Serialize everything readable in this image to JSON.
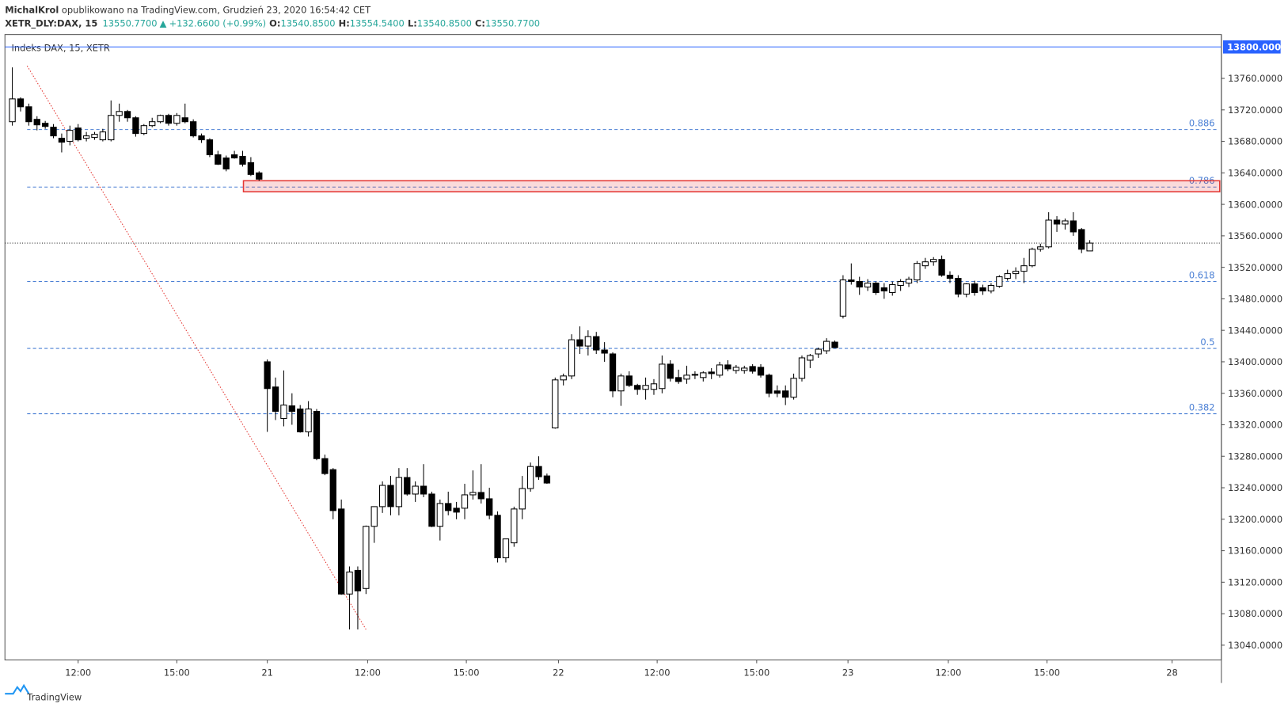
{
  "header": {
    "author": "MichalKrol",
    "published": " opublikowano na TradingView.com, Grudzień 23, 2020 16:54:42 CET",
    "symbol": "XETR_DLY:DAX, 15",
    "last": "13550.7700",
    "arrow": "▲",
    "change": "+132.6600 (+0.99%)",
    "ohlc": [
      {
        "key": "O:",
        "value": "13540.8500"
      },
      {
        "key": "H:",
        "value": "13554.5400"
      },
      {
        "key": "L:",
        "value": "13540.8500"
      },
      {
        "key": "C:",
        "value": "13550.7700"
      }
    ]
  },
  "footer": {
    "brand": "TradingView"
  },
  "chart_data": {
    "type": "candlestick",
    "title": "Indeks DAX, 15, XETR",
    "xlim": [
      -0.9,
      147
    ],
    "ylim": [
      13021.2,
      13815.7
    ],
    "yticks": [
      {
        "value": 13040,
        "label": "13040.0000"
      },
      {
        "value": 13080,
        "label": "13080.0000"
      },
      {
        "value": 13120,
        "label": "13120.0000"
      },
      {
        "value": 13160,
        "label": "13160.0000"
      },
      {
        "value": 13200,
        "label": "13200.0000"
      },
      {
        "value": 13240,
        "label": "13240.0000"
      },
      {
        "value": 13280,
        "label": "13280.0000"
      },
      {
        "value": 13320,
        "label": "13320.0000"
      },
      {
        "value": 13360,
        "label": "13360.0000"
      },
      {
        "value": 13400,
        "label": "13400.0000"
      },
      {
        "value": 13440,
        "label": "13440.0000"
      },
      {
        "value": 13480,
        "label": "13480.0000"
      },
      {
        "value": 13520,
        "label": "13520.0000"
      },
      {
        "value": 13560,
        "label": "13560.0000"
      },
      {
        "value": 13600,
        "label": "13600.0000"
      },
      {
        "value": 13640,
        "label": "13640.0000"
      },
      {
        "value": 13680,
        "label": "13680.0000"
      },
      {
        "value": 13720,
        "label": "13720.0000"
      },
      {
        "value": 13760,
        "label": "13760.0000"
      }
    ],
    "xticks": [
      {
        "value": 8,
        "label": "12:00"
      },
      {
        "value": 20,
        "label": "15:00"
      },
      {
        "value": 31,
        "label": "21"
      },
      {
        "value": 43.2,
        "label": "12:00"
      },
      {
        "value": 55.2,
        "label": "15:00"
      },
      {
        "value": 66.4,
        "label": "22"
      },
      {
        "value": 78.4,
        "label": "12:00"
      },
      {
        "value": 90.5,
        "label": "15:00"
      },
      {
        "value": 101.6,
        "label": "23"
      },
      {
        "value": 113.8,
        "label": "12:00"
      },
      {
        "value": 125.8,
        "label": "15:00"
      },
      {
        "value": 141,
        "label": "28"
      }
    ],
    "price_marker": {
      "value": 13800,
      "label": "13800.0000",
      "color": "#2962ff"
    },
    "last_price": 13550.77,
    "fib_levels": [
      {
        "label": "0.886",
        "value": 13695
      },
      {
        "label": "0.786",
        "value": 13622
      },
      {
        "label": "0.618",
        "value": 13502
      },
      {
        "label": "0.5",
        "value": 13417
      },
      {
        "label": "0.382",
        "value": 13334
      }
    ],
    "fib_start": 1.8,
    "fib_color": "#4a7fd4",
    "zone": {
      "x": 28.1,
      "top": 13630,
      "bottom": 13616,
      "color": "#e53935"
    },
    "trendline": {
      "x": [
        1.8,
        43
      ],
      "y": [
        13776,
        13060
      ],
      "color": "#e53935"
    },
    "up_color": "#ffffff",
    "down_color": "#000000",
    "x": [
      0,
      1,
      2,
      3,
      4,
      5,
      6,
      7,
      8,
      9,
      10,
      11,
      12,
      13,
      14,
      15,
      16,
      17,
      18,
      19,
      20,
      21,
      22,
      23,
      24,
      25,
      26,
      27,
      28,
      29,
      30,
      31,
      32,
      33,
      34,
      35,
      36,
      37,
      38,
      39,
      40,
      41,
      42,
      43,
      44,
      45,
      46,
      47,
      48,
      49,
      50,
      51,
      52,
      53,
      54,
      55,
      56,
      57,
      58,
      59,
      60,
      61,
      62,
      63,
      64,
      65,
      66,
      67,
      68,
      69,
      70,
      71,
      72,
      73,
      74,
      75,
      76,
      77,
      78,
      79,
      80,
      81,
      82,
      83,
      84,
      85,
      86,
      87,
      88,
      89,
      90,
      91,
      92,
      93,
      94,
      95,
      96,
      97,
      98,
      99,
      100,
      101,
      102,
      103,
      104,
      105,
      106,
      107,
      108,
      109,
      110,
      111,
      112,
      113,
      114,
      115,
      116,
      117,
      118,
      119,
      120,
      121,
      122,
      123,
      124,
      125,
      126,
      127,
      128,
      129,
      130,
      131
    ],
    "open": [
      13705,
      13734,
      13724,
      13708,
      13703,
      13698,
      13684,
      13680,
      13697,
      13684,
      13685,
      13682,
      13682,
      13713,
      13718,
      13710,
      13690,
      13700,
      13705,
      13713,
      13703,
      13710,
      13705,
      13687,
      13682,
      13663,
      13659,
      13663,
      13661,
      13653,
      13640,
      13400,
      13368,
      13328,
      13344,
      13340,
      13311,
      13337,
      13277,
      13263,
      13213,
      13105,
      13135,
      13112,
      13191,
      13216,
      13243,
      13216,
      13253,
      13232,
      13242,
      13232,
      13191,
      13220,
      13214,
      13214,
      13231,
      13234,
      13226,
      13205,
      13151,
      13170,
      13213,
      13239,
      13267,
      13255,
      13316,
      13377,
      13382,
      13428,
      13420,
      13432,
      13415,
      13410,
      13363,
      13382,
      13370,
      13365,
      13365,
      13366,
      13397,
      13380,
      13378,
      13383,
      13380,
      13387,
      13383,
      13396,
      13389,
      13389,
      13394,
      13393,
      13383,
      13363,
      13363,
      13355,
      13379,
      13402,
      13410,
      13414,
      13425,
      13458,
      13504,
      13502,
      13495,
      13500,
      13494,
      13488,
      13497,
      13500,
      13504,
      13522,
      13527,
      13530,
      13510,
      13506,
      13486,
      13499,
      13494,
      13490,
      13496,
      13506,
      13512,
      13515,
      13522,
      13543,
      13546,
      13580,
      13575,
      13579,
      13568,
      13540.85
    ],
    "high": [
      13774,
      13736,
      13728,
      13712,
      13706,
      13702,
      13690,
      13700,
      13702,
      13692,
      13692,
      13696,
      13732,
      13728,
      13720,
      13712,
      13702,
      13710,
      13714,
      13715,
      13716,
      13728,
      13708,
      13690,
      13684,
      13668,
      13662,
      13668,
      13668,
      13660,
      13642,
      13403,
      13380,
      13389,
      13360,
      13345,
      13350,
      13340,
      13282,
      13265,
      13225,
      13140,
      13140,
      13192,
      13215,
      13248,
      13255,
      13265,
      13265,
      13248,
      13270,
      13235,
      13225,
      13235,
      13222,
      13245,
      13262,
      13270,
      13240,
      13210,
      13175,
      13216,
      13255,
      13272,
      13280,
      13258,
      13380,
      13385,
      13435,
      13445,
      13440,
      13438,
      13425,
      13412,
      13385,
      13388,
      13372,
      13380,
      13378,
      13408,
      13402,
      13390,
      13395,
      13388,
      13388,
      13392,
      13400,
      13402,
      13396,
      13395,
      13397,
      13397,
      13385,
      13370,
      13370,
      13385,
      13408,
      13410,
      13418,
      13430,
      13427,
      13510,
      13525,
      13508,
      13505,
      13502,
      13500,
      13502,
      13505,
      13508,
      13528,
      13532,
      13533,
      13535,
      13515,
      13510,
      13500,
      13503,
      13498,
      13500,
      13510,
      13517,
      13520,
      13532,
      13545,
      13550,
      13590,
      13585,
      13582,
      13590,
      13570,
      13554.54
    ],
    "low": [
      13700,
      13718,
      13700,
      13694,
      13696,
      13684,
      13666,
      13675,
      13680,
      13680,
      13682,
      13680,
      13680,
      13705,
      13705,
      13686,
      13688,
      13698,
      13703,
      13700,
      13700,
      13703,
      13685,
      13678,
      13660,
      13650,
      13642,
      13658,
      13648,
      13636,
      13630,
      13311,
      13326,
      13318,
      13320,
      13310,
      13305,
      13275,
      13256,
      13200,
      13104,
      13060,
      13060,
      13105,
      13170,
      13208,
      13205,
      13205,
      13230,
      13222,
      13228,
      13190,
      13173,
      13205,
      13200,
      13200,
      13225,
      13220,
      13200,
      13145,
      13145,
      13165,
      13200,
      13235,
      13250,
      13245,
      13315,
      13370,
      13378,
      13410,
      13408,
      13410,
      13400,
      13355,
      13344,
      13368,
      13358,
      13352,
      13358,
      13360,
      13375,
      13372,
      13372,
      13378,
      13375,
      13378,
      13380,
      13388,
      13385,
      13385,
      13385,
      13380,
      13355,
      13355,
      13345,
      13352,
      13375,
      13392,
      13405,
      13410,
      13418,
      13455,
      13498,
      13485,
      13490,
      13485,
      13480,
      13484,
      13490,
      13495,
      13500,
      13518,
      13522,
      13508,
      13500,
      13482,
      13482,
      13484,
      13485,
      13487,
      13494,
      13503,
      13505,
      13500,
      13520,
      13540,
      13544,
      13565,
      13568,
      13560,
      13538,
      13540.85
    ],
    "close": [
      13734,
      13724,
      13705,
      13701,
      13699,
      13687,
      13679,
      13694,
      13682,
      13687,
      13689,
      13692,
      13713,
      13718,
      13710,
      13690,
      13700,
      13705,
      13713,
      13703,
      13713,
      13705,
      13687,
      13682,
      13663,
      13651,
      13645,
      13659,
      13651,
      13638,
      13632,
      13366,
      13337,
      13345,
      13337,
      13311,
      13340,
      13277,
      13258,
      13211,
      13105,
      13133,
      13109,
      13191,
      13216,
      13243,
      13216,
      13253,
      13232,
      13242,
      13232,
      13191,
      13220,
      13211,
      13209,
      13231,
      13234,
      13226,
      13205,
      13151,
      13175,
      13213,
      13239,
      13267,
      13254,
      13246,
      13377,
      13382,
      13428,
      13420,
      13432,
      13415,
      13411,
      13363,
      13382,
      13370,
      13365,
      13370,
      13372,
      13397,
      13379,
      13375,
      13383,
      13384,
      13386,
      13385,
      13396,
      13391,
      13393,
      13392,
      13388,
      13383,
      13360,
      13360,
      13355,
      13379,
      13405,
      13408,
      13416,
      13426,
      13418,
      13504,
      13502,
      13495,
      13500,
      13488,
      13490,
      13498,
      13502,
      13505,
      13525,
      13527,
      13530,
      13510,
      13506,
      13486,
      13499,
      13488,
      13490,
      13497,
      13508,
      13512,
      13515,
      13522,
      13543,
      13546,
      13580,
      13575,
      13579,
      13565,
      13543,
      13550.77
    ]
  }
}
